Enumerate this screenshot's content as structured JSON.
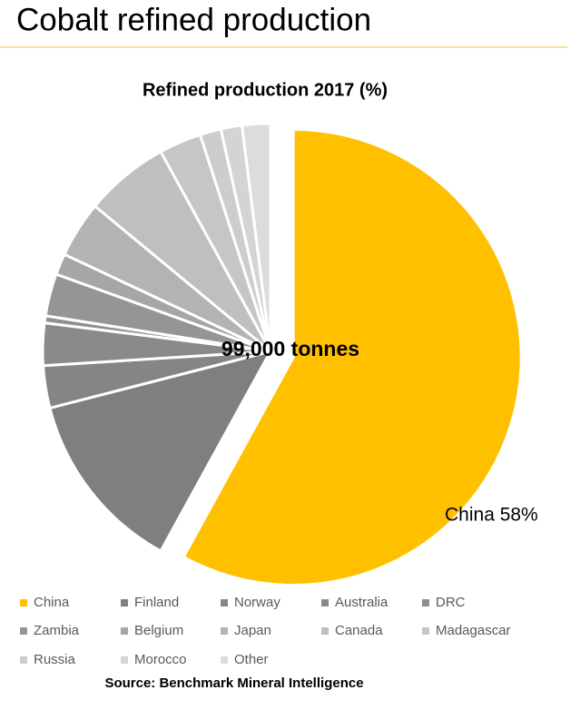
{
  "slide_title": "Cobalt refined production",
  "chart_data": {
    "type": "pie",
    "title": "Refined production 2017 (%)",
    "center_label": "99,000 tonnes",
    "source": "Source: Benchmark Mineral Intelligence",
    "categories": [
      "China",
      "Finland",
      "Norway",
      "Australia",
      "DRC",
      "Zambia",
      "Belgium",
      "Japan",
      "Canada",
      "Madagascar",
      "Russia",
      "Morocco",
      "Other"
    ],
    "values": [
      58,
      13,
      3,
      3,
      0.5,
      3,
      1.5,
      4,
      6,
      3,
      1.5,
      1.5,
      2
    ],
    "value_labels": [
      "China 58%",
      null,
      null,
      null,
      null,
      null,
      null,
      null,
      null,
      null,
      null,
      null,
      null
    ],
    "colors": [
      "#ffc000",
      "#7f7f7f",
      "#858585",
      "#8a8a8a",
      "#8f8f8f",
      "#959595",
      "#a6a6a6",
      "#b3b3b3",
      "#bfbfbf",
      "#c6c6c6",
      "#cdcdcd",
      "#d4d4d4",
      "#dcdcdc"
    ],
    "exploded": [
      0
    ],
    "legend": "bottom"
  }
}
